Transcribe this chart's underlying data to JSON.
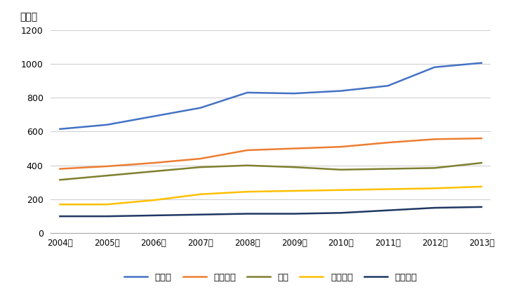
{
  "years": [
    2004,
    2005,
    2006,
    2007,
    2008,
    2009,
    2010,
    2011,
    2012,
    2013
  ],
  "series": {
    "ドイツ": [
      615,
      640,
      690,
      740,
      830,
      825,
      840,
      870,
      980,
      1005
    ],
    "フランス": [
      380,
      395,
      415,
      440,
      490,
      500,
      510,
      535,
      555,
      560
    ],
    "英国": [
      315,
      340,
      365,
      390,
      400,
      390,
      375,
      380,
      385,
      415
    ],
    "イタリア": [
      170,
      170,
      195,
      230,
      245,
      250,
      255,
      260,
      265,
      275
    ],
    "オランダ": [
      100,
      100,
      105,
      110,
      115,
      115,
      120,
      135,
      150,
      155
    ]
  },
  "colors": {
    "ドイツ": "#4472C4",
    "フランス": "#ED7D31",
    "英国": "#7F7F2F",
    "イタリア": "#FFC000",
    "オランダ": "#1F3864"
  },
  "ylabel": "億ドル",
  "ylim": [
    0,
    1200
  ],
  "yticks": [
    0,
    200,
    400,
    600,
    800,
    1000,
    1200
  ],
  "background_color": "#FFFFFF",
  "grid_color": "#D0D0D0",
  "legend_order": [
    "ドイツ",
    "フランス",
    "英国",
    "イタリア",
    "オランダ"
  ]
}
